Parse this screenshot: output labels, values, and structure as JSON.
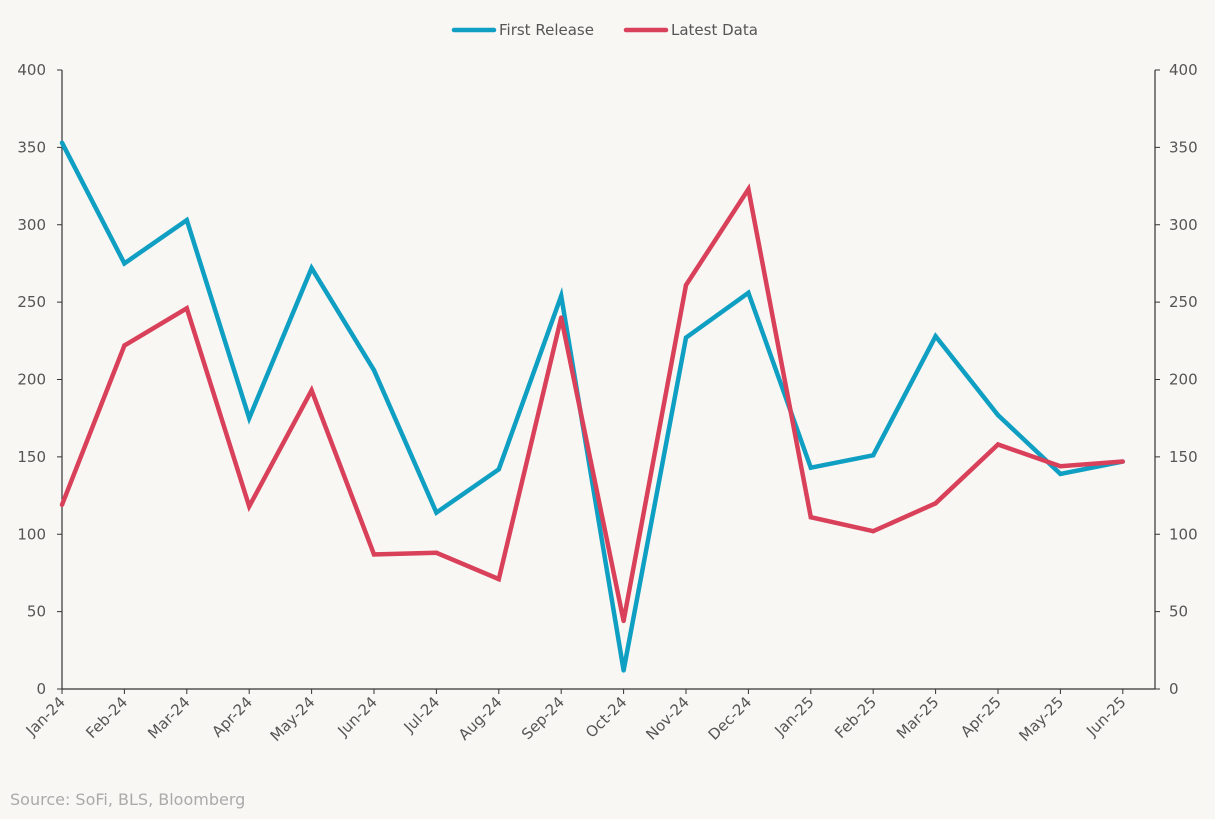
{
  "chart_data": {
    "type": "line",
    "categories": [
      "Jan-24",
      "Feb-24",
      "Mar-24",
      "Apr-24",
      "May-24",
      "Jun-24",
      "Jul-24",
      "Aug-24",
      "Sep-24",
      "Oct-24",
      "Nov-24",
      "Dec-24",
      "Jan-25",
      "Feb-25",
      "Mar-25",
      "Apr-25",
      "May-25",
      "Jun-25"
    ],
    "series": [
      {
        "name": "First Release",
        "color": "#0f9fc2",
        "values": [
          353,
          275,
          303,
          175,
          272,
          206,
          114,
          142,
          254,
          12,
          227,
          256,
          143,
          151,
          228,
          177,
          139,
          147
        ]
      },
      {
        "name": "Latest Data",
        "color": "#d9405a",
        "values": [
          119,
          222,
          246,
          118,
          193,
          87,
          88,
          71,
          240,
          44,
          261,
          323,
          111,
          102,
          120,
          158,
          144,
          147
        ]
      }
    ],
    "yticks": [
      0,
      50,
      100,
      150,
      200,
      250,
      300,
      350,
      400
    ],
    "ylim": [
      0,
      400
    ],
    "y_axis_sides": "left-and-right",
    "legend_position": "top-center",
    "grid": false
  },
  "source": "Source: SoFi, BLS, Bloomberg"
}
